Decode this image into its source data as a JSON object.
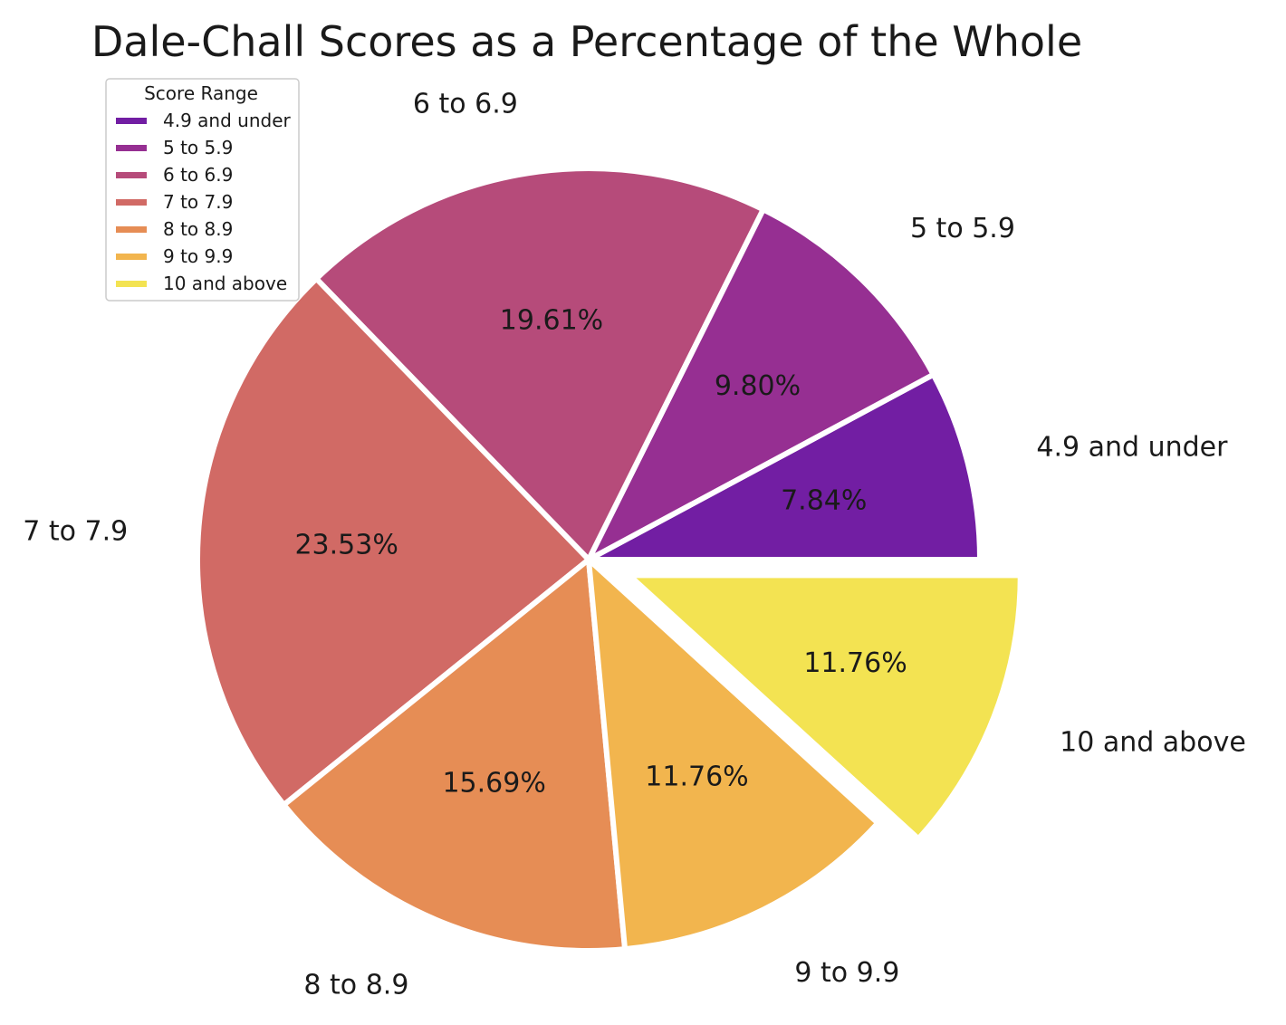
{
  "chart_data": {
    "type": "pie",
    "title": "Dale-Chall Scores as a Percentage of the Whole",
    "legend": {
      "title": "Score Range",
      "placement": "top-left"
    },
    "start_angle_deg": 0,
    "direction": "counterclockwise",
    "exploded": [
      "10 and above"
    ],
    "slices": [
      {
        "label": "4.9 and under",
        "value": 7.84,
        "pct_label": "7.84%",
        "color": "#721ea3"
      },
      {
        "label": "5 to 5.9",
        "value": 9.8,
        "pct_label": "9.80%",
        "color": "#962f92"
      },
      {
        "label": "6 to 6.9",
        "value": 19.61,
        "pct_label": "19.61%",
        "color": "#b64b7a"
      },
      {
        "label": "7 to 7.9",
        "value": 23.53,
        "pct_label": "23.53%",
        "color": "#d16a65"
      },
      {
        "label": "8 to 8.9",
        "value": 15.69,
        "pct_label": "15.69%",
        "color": "#e68d55"
      },
      {
        "label": "9 to 9.9",
        "value": 11.76,
        "pct_label": "11.76%",
        "color": "#f2b54e"
      },
      {
        "label": "10 and above",
        "value": 11.76,
        "pct_label": "11.76%",
        "color": "#f3e352"
      }
    ]
  }
}
